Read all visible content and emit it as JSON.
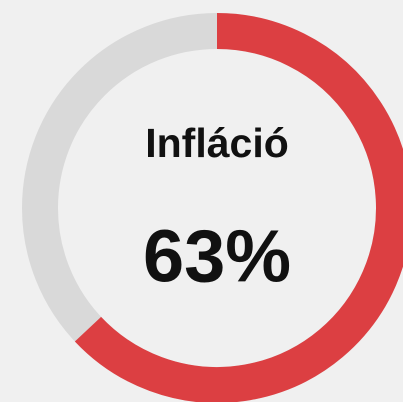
{
  "chart_data": {
    "type": "gauge",
    "title": "Infláció",
    "value": 63,
    "value_label": "63%",
    "ylim": [
      0,
      100
    ],
    "color": "#dc3f42",
    "track_color": "#d9d9d9"
  }
}
